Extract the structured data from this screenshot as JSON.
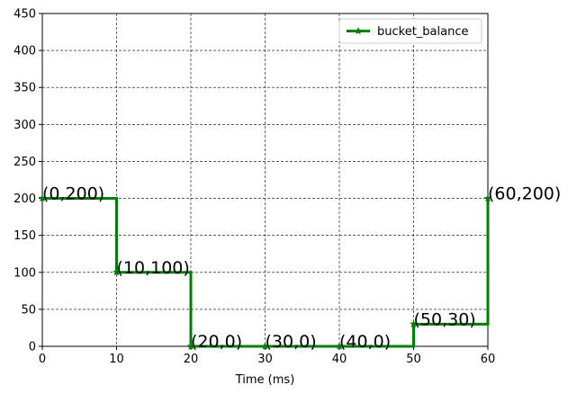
{
  "chart_data": {
    "type": "line",
    "title": "",
    "xlabel": "Time (ms)",
    "ylabel": "",
    "xlim": [
      0,
      60
    ],
    "ylim": [
      0,
      450
    ],
    "xticks": [
      0,
      10,
      20,
      30,
      40,
      50,
      60
    ],
    "yticks": [
      0,
      50,
      100,
      150,
      200,
      250,
      300,
      350,
      400,
      450
    ],
    "grid": true,
    "grid_style": "dashed",
    "legend_position": "top-right",
    "step": true,
    "series": [
      {
        "name": "bucket_balance",
        "color": "#008000",
        "marker": "star",
        "x": [
          0,
          10,
          20,
          30,
          40,
          50,
          60
        ],
        "y": [
          200,
          100,
          0,
          0,
          0,
          30,
          200
        ]
      }
    ],
    "annotations": [
      {
        "x": 0,
        "y": 200,
        "text": "(0,200)"
      },
      {
        "x": 10,
        "y": 100,
        "text": "(10,100)"
      },
      {
        "x": 20,
        "y": 0,
        "text": "(20,0)"
      },
      {
        "x": 30,
        "y": 0,
        "text": "(30,0)"
      },
      {
        "x": 40,
        "y": 0,
        "text": "(40,0)"
      },
      {
        "x": 50,
        "y": 30,
        "text": "(50,30)"
      },
      {
        "x": 60,
        "y": 200,
        "text": "(60,200)"
      }
    ]
  }
}
